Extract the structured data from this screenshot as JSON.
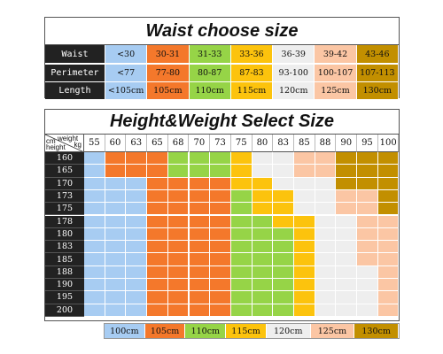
{
  "sizes": [
    {
      "key": "blue",
      "color": "#a7ccf2"
    },
    {
      "key": "orange",
      "color": "#f4782b"
    },
    {
      "key": "green",
      "color": "#96d447"
    },
    {
      "key": "yellow",
      "color": "#fcc30d"
    },
    {
      "key": "white",
      "color": "#eeeeee"
    },
    {
      "key": "peach",
      "color": "#fbc6a4"
    },
    {
      "key": "gold",
      "color": "#c28f00"
    }
  ],
  "waist_table": {
    "title": "Waist choose size",
    "rows": [
      {
        "label": "Waist",
        "values": [
          "<30",
          "30-31",
          "31-33",
          "33-36",
          "36-39",
          "39-42",
          "43-46"
        ]
      },
      {
        "label": "Perimeter",
        "values": [
          "<77",
          "77-80",
          "80-87",
          "87-83",
          "93-100",
          "100-107",
          "107-113"
        ]
      },
      {
        "label": "Length",
        "values": [
          "<105cm",
          "105cm",
          "110cm",
          "115cm",
          "120cm",
          "125cm",
          "130cm"
        ]
      }
    ]
  },
  "hw_table": {
    "title": "Height&Weight Select Size",
    "corner": {
      "weight": "weight",
      "kg": "kg",
      "cm": "cm",
      "height": "height"
    },
    "weights": [
      "55",
      "60",
      "63",
      "65",
      "68",
      "70",
      "73",
      "75",
      "80",
      "83",
      "85",
      "88",
      "90",
      "95",
      "100"
    ],
    "heights": [
      "160",
      "165",
      "170",
      "173",
      "175",
      "178",
      "180",
      "183",
      "185",
      "188",
      "190",
      "195",
      "200"
    ],
    "grid": [
      [
        0,
        1,
        1,
        1,
        2,
        2,
        2,
        3,
        4,
        4,
        5,
        5,
        6,
        6,
        6
      ],
      [
        0,
        1,
        1,
        1,
        2,
        2,
        2,
        3,
        4,
        4,
        5,
        5,
        6,
        6,
        6
      ],
      [
        0,
        0,
        0,
        1,
        1,
        1,
        1,
        3,
        3,
        4,
        4,
        4,
        6,
        6,
        6
      ],
      [
        0,
        0,
        0,
        1,
        1,
        1,
        1,
        2,
        3,
        3,
        4,
        4,
        5,
        5,
        6
      ],
      [
        0,
        0,
        0,
        1,
        1,
        1,
        1,
        2,
        3,
        3,
        4,
        4,
        5,
        5,
        6
      ],
      [
        0,
        0,
        0,
        1,
        1,
        1,
        1,
        2,
        2,
        3,
        3,
        4,
        4,
        5,
        5
      ],
      [
        0,
        0,
        0,
        1,
        1,
        1,
        1,
        2,
        2,
        2,
        3,
        4,
        4,
        5,
        5
      ],
      [
        0,
        0,
        0,
        1,
        1,
        1,
        1,
        2,
        2,
        2,
        3,
        4,
        4,
        5,
        5
      ],
      [
        0,
        0,
        0,
        1,
        1,
        1,
        1,
        2,
        2,
        2,
        3,
        4,
        4,
        5,
        5
      ],
      [
        0,
        0,
        0,
        1,
        1,
        1,
        1,
        2,
        2,
        2,
        3,
        4,
        4,
        4,
        5
      ],
      [
        0,
        0,
        0,
        1,
        1,
        1,
        1,
        2,
        2,
        2,
        3,
        4,
        4,
        4,
        5
      ],
      [
        0,
        0,
        0,
        1,
        1,
        1,
        1,
        2,
        2,
        2,
        3,
        4,
        4,
        4,
        5
      ],
      [
        0,
        0,
        0,
        1,
        1,
        1,
        1,
        2,
        2,
        2,
        3,
        4,
        4,
        4,
        5
      ]
    ],
    "legend": [
      "100cm",
      "105cm",
      "110cm",
      "115cm",
      "120cm",
      "125cm",
      "130cm"
    ]
  }
}
